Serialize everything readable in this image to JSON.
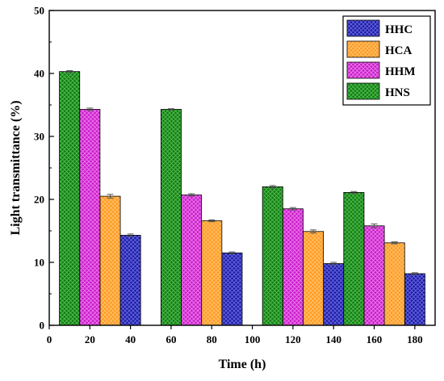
{
  "chart_data": {
    "type": "bar",
    "xlabel": "Time (h)",
    "ylabel": "Light transmittance (%)",
    "ylim": [
      0,
      50
    ],
    "xlim": [
      0,
      190
    ],
    "yticks": [
      0,
      10,
      20,
      30,
      40,
      50
    ],
    "xticks": [
      0,
      20,
      40,
      60,
      80,
      100,
      120,
      140,
      160,
      180
    ],
    "bar_width": 10,
    "groups": [
      {
        "x": 10,
        "series": [
          "HNS",
          "HHM",
          "HCA",
          "HHC"
        ]
      },
      {
        "x": 60,
        "series": [
          "HNS",
          "HHM",
          "HCA",
          "HHC"
        ]
      },
      {
        "x": 110,
        "series": [
          "HNS",
          "HHM",
          "HCA",
          "HHC"
        ]
      },
      {
        "x": 160,
        "series": [
          "HNS",
          "HHM",
          "HCA",
          "HHC"
        ]
      }
    ],
    "series": [
      {
        "name": "HHC",
        "color": "#1c1ca8",
        "pattern_color": "#6a6ae0",
        "x": [
          40,
          90,
          140,
          180
        ],
        "values": [
          14.3,
          11.5,
          9.8,
          8.2
        ],
        "errors": [
          0.2,
          0.15,
          0.2,
          0.15
        ]
      },
      {
        "name": "HCA",
        "color": "#ff9920",
        "pattern_color": "#ffc46e",
        "x": [
          30,
          80,
          130,
          170
        ],
        "values": [
          20.5,
          16.6,
          14.9,
          13.1
        ],
        "errors": [
          0.3,
          0.15,
          0.25,
          0.15
        ]
      },
      {
        "name": "HHM",
        "color": "#c81ec8",
        "pattern_color": "#ee7aee",
        "x": [
          20,
          70,
          120,
          160
        ],
        "values": [
          34.3,
          20.7,
          18.5,
          15.8
        ],
        "errors": [
          0.2,
          0.2,
          0.2,
          0.3
        ]
      },
      {
        "name": "HNS",
        "color": "#147a14",
        "pattern_color": "#4fc04f",
        "x": [
          10,
          60,
          110,
          150
        ],
        "values": [
          40.3,
          34.3,
          22.0,
          21.1
        ],
        "errors": [
          0.15,
          0.1,
          0.2,
          0.15
        ]
      }
    ],
    "legend": {
      "position": "top-right",
      "order": [
        "HHC",
        "HCA",
        "HHM",
        "HNS"
      ]
    },
    "grid": false
  }
}
